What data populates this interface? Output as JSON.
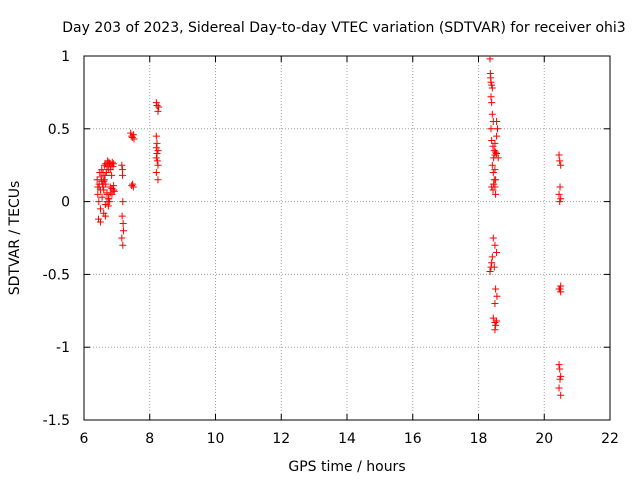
{
  "chart_data": {
    "type": "scatter",
    "title": "Day 203 of 2023, Sidereal Day-to-day VTEC variation (SDTVAR) for receiver ohi3",
    "xlabel": "GPS time / hours",
    "ylabel": "SDTVAR / TECUs",
    "xlim": [
      6,
      22
    ],
    "ylim": [
      -1.5,
      1
    ],
    "xticks": [
      6,
      8,
      10,
      12,
      14,
      16,
      18,
      20,
      22
    ],
    "xtick_labels": [
      "6",
      "8",
      "10",
      "12",
      "14",
      "16",
      "18",
      "20",
      "22"
    ],
    "yticks": [
      -1.5,
      -1,
      -0.5,
      0,
      0.5,
      1
    ],
    "ytick_labels": [
      "-1.5",
      "-1",
      "-0.5",
      "0",
      "0.5",
      "1"
    ],
    "grid": true,
    "marker": "+",
    "colors": {
      "points": "#ff0000",
      "grid": "#a0a0a0",
      "axis": "#000000"
    },
    "series": [
      {
        "name": "SDTVAR",
        "x": [
          6.4,
          6.42,
          6.44,
          6.46,
          6.48,
          6.5,
          6.52,
          6.54,
          6.56,
          6.58,
          6.6,
          6.62,
          6.64,
          6.66,
          6.68,
          6.7,
          6.72,
          6.74,
          6.76,
          6.78,
          6.8,
          6.82,
          6.84,
          6.86,
          6.88,
          6.9,
          6.45,
          6.5,
          6.55,
          6.6,
          6.65,
          6.7,
          6.75,
          6.8,
          6.85,
          6.9,
          6.42,
          6.46,
          6.5,
          6.54,
          6.58,
          6.62,
          6.66,
          6.7,
          6.74,
          6.78,
          6.6,
          6.65,
          6.7,
          6.75,
          6.8,
          6.85,
          6.9,
          6.92,
          7.15,
          7.17,
          7.18,
          7.16,
          7.19,
          7.2,
          7.15,
          7.18,
          7.17,
          7.42,
          7.45,
          7.47,
          7.5,
          7.52,
          7.45,
          7.48,
          7.5,
          8.2,
          8.22,
          8.25,
          8.27,
          8.2,
          8.22,
          8.25,
          8.2,
          8.23,
          8.25,
          8.2,
          8.25,
          8.22,
          8.2,
          18.35,
          18.36,
          18.37,
          18.38,
          18.4,
          18.42,
          18.38,
          18.4,
          18.42,
          18.45,
          18.38,
          18.4,
          18.44,
          18.46,
          18.48,
          18.5,
          18.52,
          18.55,
          18.45,
          18.48,
          18.5,
          18.52,
          18.55,
          18.58,
          18.6,
          18.45,
          18.5,
          18.55,
          18.48,
          18.52,
          18.56,
          18.5,
          18.35,
          18.38,
          18.4,
          18.42,
          18.4,
          18.44,
          18.46,
          18.42,
          18.45,
          18.5,
          18.52,
          18.5,
          18.55,
          18.5,
          18.55,
          18.52,
          18.5,
          20.45,
          20.47,
          20.5,
          20.48,
          20.45,
          20.5,
          20.47,
          20.45,
          20.5,
          20.48,
          20.5,
          20.45,
          20.47,
          20.5,
          20.48,
          20.45,
          20.5
        ],
        "y": [
          0.15,
          0.05,
          -0.12,
          0.1,
          0.2,
          -0.14,
          0.17,
          0.22,
          0.12,
          0.2,
          0.14,
          0.25,
          0.18,
          0.26,
          0.2,
          0.24,
          0.28,
          0.22,
          0.27,
          0.26,
          0.22,
          0.25,
          0.18,
          0.27,
          0.24,
          0.26,
          0.0,
          -0.05,
          0.03,
          0.08,
          -0.02,
          0.06,
          0.02,
          0.1,
          0.05,
          0.08,
          0.1,
          0.12,
          0.08,
          0.14,
          0.1,
          0.15,
          0.12,
          0.05,
          -0.03,
          0.0,
          -0.08,
          -0.1,
          0.0,
          0.02,
          0.06,
          0.09,
          0.11,
          0.07,
          0.25,
          0.22,
          0.0,
          -0.1,
          -0.15,
          -0.2,
          -0.25,
          -0.3,
          0.18,
          0.47,
          0.45,
          0.44,
          0.46,
          0.43,
          0.11,
          0.12,
          0.1,
          0.68,
          0.66,
          0.62,
          0.65,
          0.45,
          0.4,
          0.35,
          0.3,
          0.28,
          0.25,
          0.2,
          0.15,
          0.33,
          0.37,
          0.98,
          0.88,
          0.85,
          0.82,
          0.8,
          0.78,
          0.72,
          0.68,
          0.6,
          0.55,
          0.5,
          0.42,
          0.38,
          0.3,
          0.35,
          0.32,
          0.34,
          0.33,
          0.2,
          0.15,
          0.1,
          0.05,
          0.55,
          0.5,
          0.3,
          -0.25,
          -0.3,
          -0.35,
          -0.45,
          -0.6,
          -0.65,
          -0.7,
          -0.48,
          -0.45,
          -0.42,
          -0.38,
          0.1,
          0.08,
          0.12,
          0.25,
          -0.8,
          -0.83,
          -0.85,
          -0.88,
          -0.82,
          0.4,
          0.45,
          0.15,
          0.22,
          0.32,
          0.28,
          0.25,
          0.1,
          0.05,
          0.02,
          0.0,
          -0.6,
          -0.62,
          -0.6,
          -0.58,
          -1.12,
          -1.15,
          -1.2,
          -1.22,
          -1.28,
          -1.33
        ]
      }
    ]
  }
}
